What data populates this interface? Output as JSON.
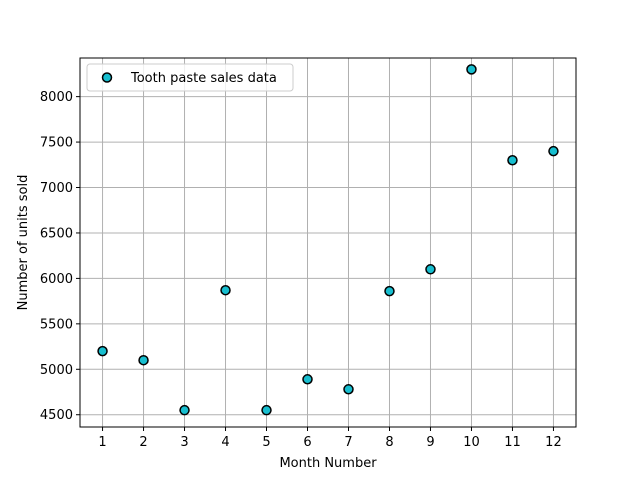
{
  "chart_data": {
    "type": "scatter",
    "title": "",
    "xlabel": "Month Number",
    "ylabel": "Number of units sold",
    "xlim": [
      0.45,
      12.55
    ],
    "ylim": [
      4365,
      8425
    ],
    "x_ticks": [
      1,
      2,
      3,
      4,
      5,
      6,
      7,
      8,
      9,
      10,
      11,
      12
    ],
    "y_ticks": [
      4500,
      5000,
      5500,
      6000,
      6500,
      7000,
      7500,
      8000
    ],
    "grid": true,
    "legend_position": "upper left",
    "series": [
      {
        "name": "Tooth paste sales data",
        "color": "#17becf",
        "edge_color": "#000000",
        "x": [
          1,
          2,
          3,
          4,
          5,
          6,
          7,
          8,
          9,
          10,
          11,
          12
        ],
        "y": [
          5200,
          5100,
          4550,
          5870,
          4550,
          4890,
          4780,
          5860,
          6100,
          8300,
          7300,
          7400
        ]
      }
    ]
  }
}
